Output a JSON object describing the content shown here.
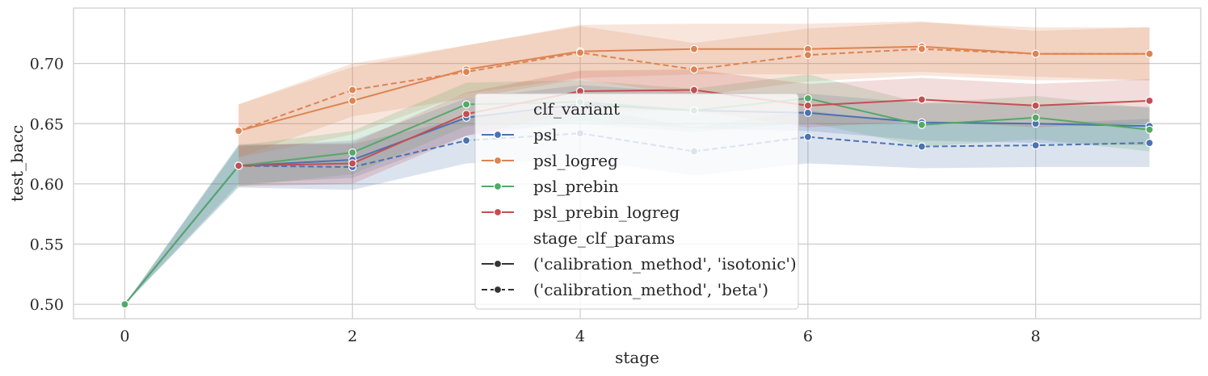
{
  "chart_data": {
    "type": "line",
    "xlabel": "stage",
    "ylabel": "test_bacc",
    "xlim": [
      -0.45,
      9.45
    ],
    "ylim": [
      0.488,
      0.746
    ],
    "xticks": [
      0,
      2,
      4,
      6,
      8
    ],
    "xtick_labels": [
      "0",
      "2",
      "4",
      "6",
      "8"
    ],
    "yticks": [
      0.5,
      0.55,
      0.6,
      0.65,
      0.7
    ],
    "ytick_labels": [
      "0.50",
      "0.55",
      "0.60",
      "0.65",
      "0.70"
    ],
    "grid": true,
    "legend_position": "center",
    "legend": {
      "hue_title": "clf_variant",
      "style_title": "stage_clf_params",
      "hue_entries": [
        {
          "label": "psl",
          "color": "#4C72B0"
        },
        {
          "label": "psl_logreg",
          "color": "#DD8452"
        },
        {
          "label": "psl_prebin",
          "color": "#55A868"
        },
        {
          "label": "psl_prebin_logreg",
          "color": "#C44E52"
        }
      ],
      "style_entries": [
        {
          "label": "('calibration_method', 'isotonic')",
          "dash": "solid"
        },
        {
          "label": "('calibration_method', 'beta')",
          "dash": "dashed"
        }
      ]
    },
    "series": [
      {
        "variant": "psl",
        "params": "isotonic",
        "color": "#4C72B0",
        "dash": "solid",
        "x": [
          0,
          1,
          2,
          3,
          4,
          5,
          6,
          7,
          8,
          9
        ],
        "y": [
          0.5,
          0.615,
          0.62,
          0.655,
          0.666,
          0.661,
          0.659,
          0.651,
          0.65,
          0.648
        ],
        "lo": [
          0.5,
          0.6,
          0.605,
          0.64,
          0.652,
          0.646,
          0.644,
          0.636,
          0.634,
          0.632
        ],
        "hi": [
          0.5,
          0.631,
          0.636,
          0.671,
          0.682,
          0.676,
          0.675,
          0.667,
          0.666,
          0.664
        ]
      },
      {
        "variant": "psl",
        "params": "beta",
        "color": "#4C72B0",
        "dash": "dashed",
        "x": [
          0,
          1,
          2,
          3,
          4,
          5,
          6,
          7,
          8,
          9
        ],
        "y": [
          0.5,
          0.615,
          0.614,
          0.636,
          0.642,
          0.627,
          0.639,
          0.631,
          0.632,
          0.634
        ],
        "lo": [
          0.5,
          0.597,
          0.595,
          0.617,
          0.62,
          0.607,
          0.617,
          0.613,
          0.614,
          0.614
        ],
        "hi": [
          0.5,
          0.633,
          0.633,
          0.655,
          0.664,
          0.647,
          0.661,
          0.649,
          0.65,
          0.654
        ]
      },
      {
        "variant": "psl_logreg",
        "params": "isotonic",
        "color": "#DD8452",
        "dash": "solid",
        "x": [
          1,
          2,
          3,
          4,
          5,
          6,
          7,
          8,
          9
        ],
        "y": [
          0.644,
          0.669,
          0.695,
          0.71,
          0.712,
          0.712,
          0.714,
          0.708,
          0.708
        ],
        "lo": [
          0.622,
          0.641,
          0.675,
          0.688,
          0.691,
          0.691,
          0.693,
          0.689,
          0.686
        ],
        "hi": [
          0.666,
          0.697,
          0.715,
          0.732,
          0.733,
          0.733,
          0.735,
          0.727,
          0.73
        ]
      },
      {
        "variant": "psl_logreg",
        "params": "beta",
        "color": "#DD8452",
        "dash": "dashed",
        "x": [
          1,
          2,
          3,
          4,
          5,
          6,
          7,
          8,
          9
        ],
        "y": [
          0.644,
          0.678,
          0.693,
          0.709,
          0.695,
          0.707,
          0.712,
          0.708,
          0.708
        ],
        "lo": [
          0.622,
          0.656,
          0.671,
          0.687,
          0.673,
          0.685,
          0.69,
          0.686,
          0.686
        ],
        "hi": [
          0.666,
          0.7,
          0.715,
          0.731,
          0.717,
          0.729,
          0.734,
          0.73,
          0.73
        ]
      },
      {
        "variant": "psl_prebin",
        "params": "isotonic",
        "color": "#55A868",
        "dash": "solid",
        "x": [
          0,
          1,
          2,
          3,
          4,
          5,
          6,
          7,
          8,
          9
        ],
        "y": [
          0.5,
          0.615,
          0.626,
          0.666,
          0.668,
          0.661,
          0.671,
          0.649,
          0.655,
          0.645
        ],
        "lo": [
          0.5,
          0.598,
          0.608,
          0.648,
          0.65,
          0.643,
          0.651,
          0.631,
          0.637,
          0.627
        ],
        "hi": [
          0.5,
          0.632,
          0.644,
          0.684,
          0.686,
          0.679,
          0.691,
          0.667,
          0.673,
          0.663
        ]
      },
      {
        "variant": "psl_prebin_logreg",
        "params": "isotonic",
        "color": "#C44E52",
        "dash": "solid",
        "x": [
          1,
          2,
          3,
          4,
          5,
          6,
          7,
          8,
          9
        ],
        "y": [
          0.615,
          0.617,
          0.658,
          0.677,
          0.678,
          0.665,
          0.67,
          0.665,
          0.669
        ],
        "lo": [
          0.598,
          0.6,
          0.64,
          0.66,
          0.661,
          0.647,
          0.652,
          0.647,
          0.651
        ],
        "hi": [
          0.632,
          0.634,
          0.676,
          0.694,
          0.695,
          0.683,
          0.688,
          0.683,
          0.687
        ]
      }
    ]
  }
}
